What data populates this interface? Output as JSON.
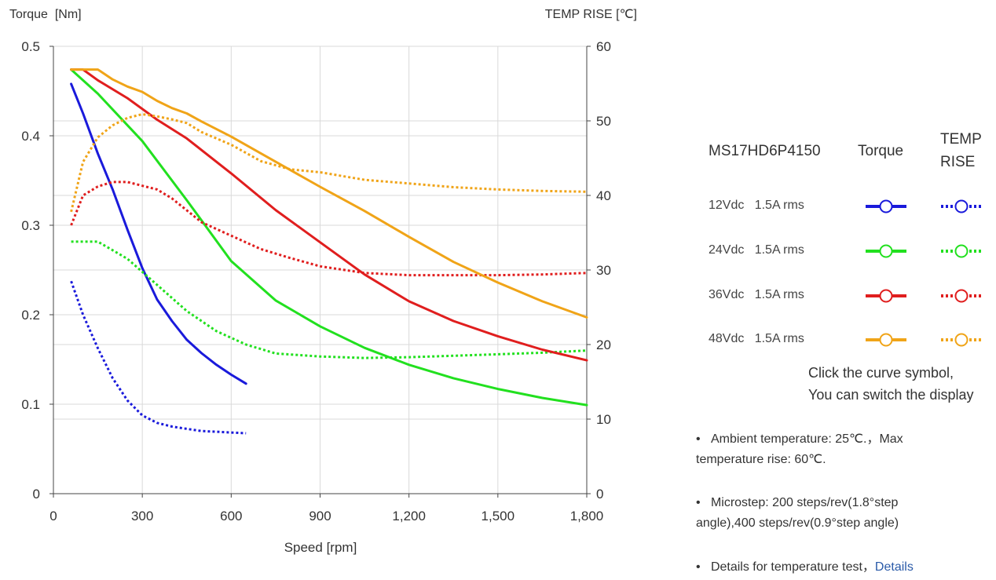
{
  "chart_data": {
    "type": "line",
    "xlabel": "Speed [rpm]",
    "ylabel_left": "Torque  [Nm]",
    "ylabel_right": "TEMP RISE [℃]",
    "xlim": [
      0,
      1800
    ],
    "ylim_left": [
      0,
      0.5
    ],
    "ylim_right": [
      0,
      60
    ],
    "x_ticks": [
      "0",
      "300",
      "600",
      "900",
      "1,200",
      "1,500",
      "1,800"
    ],
    "y_ticks_left": [
      "0",
      "0.1",
      "0.2",
      "0.3",
      "0.4",
      "0.5"
    ],
    "y_ticks_right": [
      "0",
      "10",
      "20",
      "30",
      "40",
      "50",
      "60"
    ],
    "grid": true,
    "series": [
      {
        "name": "12Vdc 1.5A rms",
        "kind": "torque",
        "color": "#1a1adb",
        "style": "solid",
        "x": [
          60,
          100,
          150,
          200,
          250,
          300,
          350,
          400,
          450,
          500,
          550,
          600,
          650
        ],
        "y": [
          0.458,
          0.425,
          0.38,
          0.34,
          0.295,
          0.252,
          0.217,
          0.193,
          0.172,
          0.157,
          0.144,
          0.133,
          0.123
        ]
      },
      {
        "name": "12Vdc 1.5A rms",
        "kind": "temp",
        "color": "#1a1adb",
        "style": "dotted",
        "x": [
          60,
          100,
          150,
          200,
          250,
          300,
          350,
          400,
          450,
          500,
          550,
          600,
          650
        ],
        "y": [
          28.5,
          24,
          19.5,
          15.5,
          12.5,
          10.5,
          9.5,
          9,
          8.7,
          8.4,
          8.3,
          8.2,
          8.1
        ]
      },
      {
        "name": "24Vdc 1.5A rms",
        "kind": "torque",
        "color": "#22e01f",
        "style": "solid",
        "x": [
          60,
          150,
          300,
          450,
          600,
          750,
          900,
          1050,
          1200,
          1350,
          1500,
          1650,
          1800
        ],
        "y": [
          0.474,
          0.447,
          0.394,
          0.328,
          0.26,
          0.216,
          0.187,
          0.163,
          0.144,
          0.129,
          0.117,
          0.107,
          0.099
        ]
      },
      {
        "name": "24Vdc 1.5A rms",
        "kind": "temp",
        "color": "#22e01f",
        "style": "dotted",
        "x": [
          60,
          150,
          250,
          350,
          450,
          550,
          650,
          750,
          900,
          1050,
          1200,
          1350,
          1500,
          1650,
          1800
        ],
        "y": [
          33.8,
          33.8,
          31.5,
          28,
          24.5,
          21.8,
          20,
          18.8,
          18.4,
          18.2,
          18.3,
          18.5,
          18.7,
          18.9,
          19.2
        ]
      },
      {
        "name": "36Vdc 1.5A rms",
        "kind": "torque",
        "color": "#e01e1e",
        "style": "solid",
        "x": [
          60,
          100,
          150,
          250,
          350,
          450,
          600,
          750,
          900,
          1050,
          1200,
          1350,
          1500,
          1650,
          1800
        ],
        "y": [
          0.474,
          0.474,
          0.462,
          0.442,
          0.418,
          0.397,
          0.358,
          0.317,
          0.281,
          0.245,
          0.215,
          0.193,
          0.176,
          0.161,
          0.149
        ]
      },
      {
        "name": "36Vdc 1.5A rms",
        "kind": "temp",
        "color": "#e01e1e",
        "style": "dotted",
        "x": [
          60,
          100,
          150,
          200,
          250,
          300,
          350,
          400,
          450,
          500,
          600,
          700,
          800,
          900,
          1050,
          1200,
          1350,
          1500,
          1650,
          1800
        ],
        "y": [
          36,
          40,
          41.2,
          41.8,
          41.8,
          41.3,
          40.8,
          39.6,
          38,
          36.4,
          34.6,
          32.8,
          31.6,
          30.5,
          29.6,
          29.3,
          29.3,
          29.3,
          29.4,
          29.6
        ]
      },
      {
        "name": "48Vdc 1.5A rms",
        "kind": "torque",
        "color": "#f0a418",
        "style": "solid",
        "x": [
          60,
          100,
          150,
          200,
          250,
          300,
          350,
          400,
          450,
          500,
          600,
          750,
          900,
          1050,
          1200,
          1350,
          1500,
          1650,
          1800
        ],
        "y": [
          0.474,
          0.474,
          0.474,
          0.463,
          0.455,
          0.449,
          0.439,
          0.431,
          0.425,
          0.416,
          0.399,
          0.371,
          0.343,
          0.316,
          0.287,
          0.259,
          0.236,
          0.215,
          0.197
        ]
      },
      {
        "name": "48Vdc 1.5A rms",
        "kind": "temp",
        "color": "#f0a418",
        "style": "dotted",
        "x": [
          60,
          100,
          150,
          200,
          250,
          300,
          350,
          400,
          450,
          500,
          600,
          700,
          800,
          900,
          1050,
          1200,
          1350,
          1500,
          1650,
          1800
        ],
        "y": [
          37.8,
          44.5,
          47.8,
          49.4,
          50.4,
          50.9,
          50.6,
          50.2,
          49.7,
          48.5,
          46.8,
          44.6,
          43.5,
          43.1,
          42.1,
          41.6,
          41.1,
          40.8,
          40.6,
          40.5
        ]
      }
    ]
  },
  "legend": {
    "model": "MS17HD6P4150",
    "torque_header": "Torque",
    "temp_header_line1": "TEMP",
    "temp_header_line2": "RISE",
    "rows": [
      {
        "voltage": "12Vdc",
        "current": "1.5A rms",
        "color": "#1a1adb"
      },
      {
        "voltage": "24Vdc",
        "current": "1.5A rms",
        "color": "#22e01f"
      },
      {
        "voltage": "36Vdc",
        "current": "1.5A rms",
        "color": "#e01e1e"
      },
      {
        "voltage": "48Vdc",
        "current": "1.5A rms",
        "color": "#f0a418"
      }
    ]
  },
  "hint": {
    "line1": "Click the curve symbol,",
    "line2": "You can switch the display"
  },
  "notes": {
    "ambient": "Ambient temperature: 25℃.，Max temperature rise: 60℃.",
    "microstep": "Microstep: 200 steps/rev(1.8°step angle),400 steps/rev(0.9°step angle)",
    "details_prefix": "Details for temperature test，",
    "details_link": "Details"
  }
}
